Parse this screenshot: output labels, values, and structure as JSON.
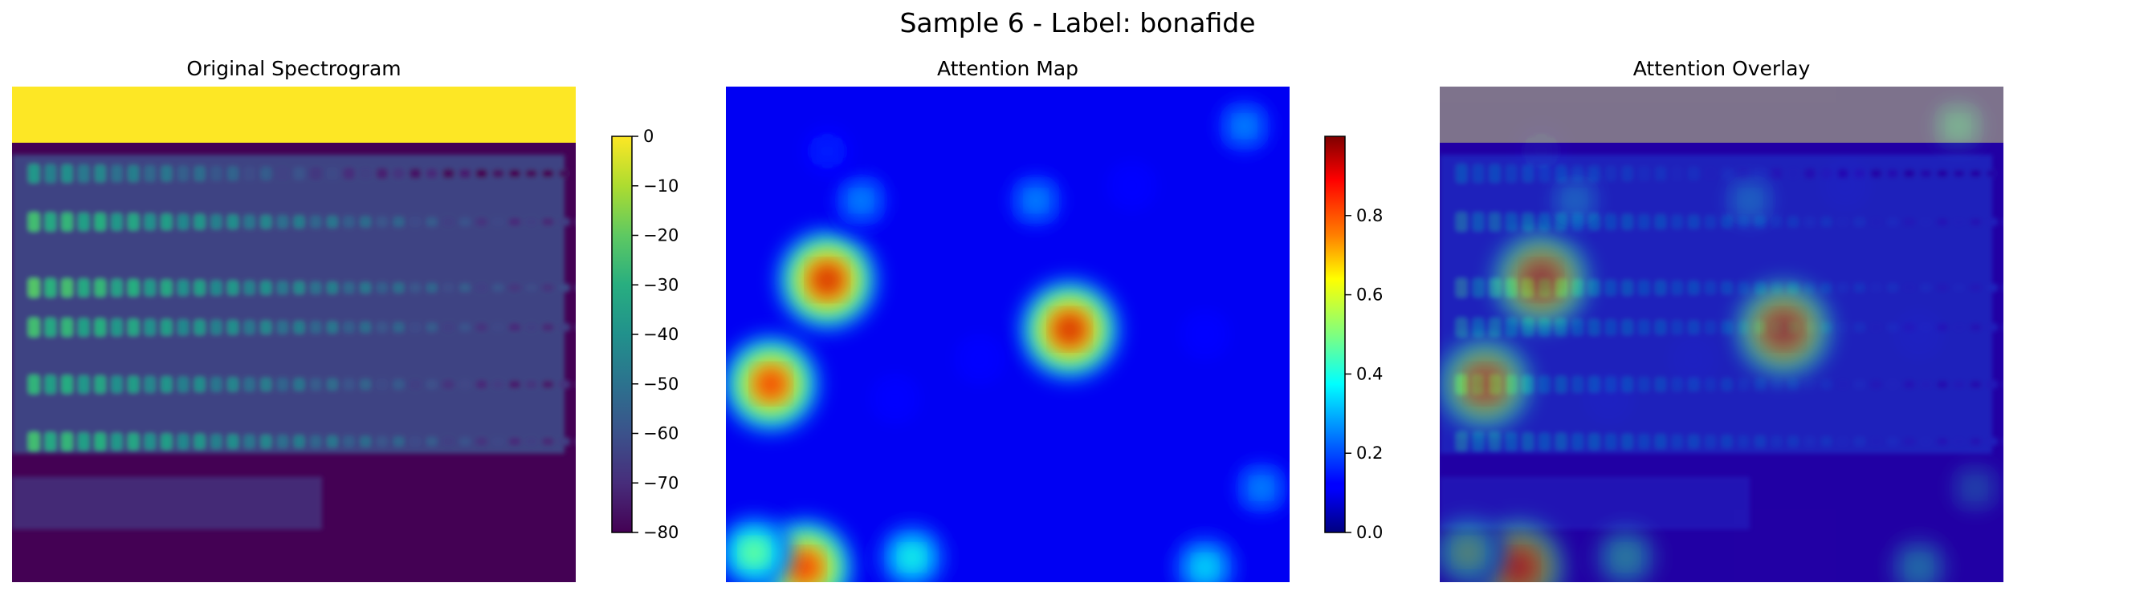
{
  "suptitle": "Sample 6 - Label: bonafide",
  "chart_data": [
    {
      "type": "heatmap",
      "title": "Original Spectrogram",
      "colormap": "viridis",
      "axes": "off",
      "colorbar": {
        "range": [
          -80,
          0
        ],
        "ticks": [
          0,
          -10,
          -20,
          -30,
          -40,
          -50,
          -60,
          -70,
          -80
        ]
      },
      "top_band_value": 0,
      "background_value": -80,
      "harmonic_bands": [
        {
          "y": 0.07,
          "intensity": -38
        },
        {
          "y": 0.18,
          "intensity": -25
        },
        {
          "y": 0.33,
          "intensity": -22
        },
        {
          "y": 0.42,
          "intensity": -25
        },
        {
          "y": 0.55,
          "intensity": -28
        },
        {
          "y": 0.68,
          "intensity": -25
        }
      ]
    },
    {
      "type": "heatmap",
      "title": "Attention Map",
      "colormap": "jet",
      "axes": "off",
      "colorbar": {
        "range": [
          0,
          1
        ],
        "ticks": [
          "0.0",
          "0.2",
          "0.4",
          "0.6",
          "0.8"
        ]
      },
      "background_value": 0.1,
      "hotspots": [
        {
          "x": 0.18,
          "y": 0.39,
          "value": 0.95
        },
        {
          "x": 0.61,
          "y": 0.49,
          "value": 0.95
        },
        {
          "x": 0.08,
          "y": 0.6,
          "value": 0.9
        },
        {
          "x": 0.14,
          "y": 0.97,
          "value": 0.9
        },
        {
          "x": 0.05,
          "y": 0.94,
          "value": 0.55
        },
        {
          "x": 0.33,
          "y": 0.95,
          "value": 0.45
        },
        {
          "x": 0.85,
          "y": 0.97,
          "value": 0.4
        },
        {
          "x": 0.92,
          "y": 0.08,
          "value": 0.3
        },
        {
          "x": 0.24,
          "y": 0.23,
          "value": 0.3
        },
        {
          "x": 0.55,
          "y": 0.23,
          "value": 0.3
        },
        {
          "x": 0.95,
          "y": 0.81,
          "value": 0.3
        },
        {
          "x": 0.18,
          "y": 0.13,
          "value": 0.18
        },
        {
          "x": 0.45,
          "y": 0.55,
          "value": 0.15
        },
        {
          "x": 0.3,
          "y": 0.63,
          "value": 0.15
        },
        {
          "x": 0.72,
          "y": 0.2,
          "value": 0.15
        },
        {
          "x": 0.85,
          "y": 0.5,
          "value": 0.15
        }
      ]
    },
    {
      "type": "heatmap",
      "title": "Attention Overlay",
      "colormap": "jet over viridis",
      "axes": "off",
      "overlay_alpha": 0.5
    }
  ]
}
